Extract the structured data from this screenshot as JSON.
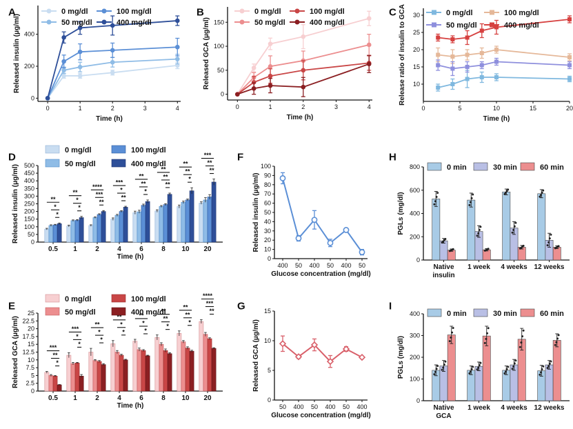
{
  "panel_letters": [
    "A",
    "B",
    "C",
    "D",
    "E",
    "F",
    "G",
    "H",
    "I"
  ],
  "colors": {
    "blue": [
      "#c9ddf1",
      "#8fbce6",
      "#5b8fd6",
      "#2e4f99"
    ],
    "red": [
      "#f7cfd1",
      "#ec8e8f",
      "#c94646",
      "#8b1f22"
    ],
    "e": [
      "#7fb8df",
      "#e5b899",
      "#8e8fdd",
      "#d6403f"
    ],
    "fg_line": [
      "#5b8fd6",
      "#d9606a"
    ],
    "h": [
      "#a8cbe6",
      "#b9bfe5",
      "#ec8e8f"
    ]
  },
  "chart_data": [
    {
      "id": "A",
      "type": "line",
      "xlabel": "Time (h)",
      "ylabel": "Released insulin (μg/ml)",
      "xlim": [
        -0.3,
        4.1
      ],
      "ylim": [
        -20,
        580
      ],
      "xticks": [
        0,
        1,
        2,
        3,
        4
      ],
      "yticks": [
        0,
        200,
        400
      ],
      "x": [
        0,
        0.5,
        1,
        2,
        4
      ],
      "series": [
        {
          "name": "0 mg/dl",
          "values": [
            0,
            140,
            140,
            160,
            205
          ],
          "err": [
            0,
            15,
            15,
            15,
            20
          ]
        },
        {
          "name": "50 mg/dl",
          "values": [
            0,
            175,
            195,
            225,
            245
          ],
          "err": [
            0,
            20,
            30,
            30,
            30
          ]
        },
        {
          "name": "100 mg/dl",
          "values": [
            0,
            230,
            290,
            300,
            320
          ],
          "err": [
            0,
            40,
            50,
            45,
            55
          ]
        },
        {
          "name": "400 mg/dl",
          "values": [
            0,
            380,
            440,
            455,
            485
          ],
          "err": [
            0,
            35,
            40,
            60,
            30
          ]
        }
      ]
    },
    {
      "id": "B",
      "type": "line",
      "xlabel": "Time (h)",
      "ylabel": "Released GCA (μg/ml)",
      "xlim": [
        -0.3,
        4.1
      ],
      "ylim": [
        -12,
        182
      ],
      "xticks": [
        0,
        1,
        2,
        3,
        4
      ],
      "yticks": [
        0,
        50,
        100,
        150
      ],
      "x": [
        0,
        0.5,
        1,
        2,
        4
      ],
      "series": [
        {
          "name": "0 mg/dl",
          "values": [
            0,
            55,
            105,
            120,
            158
          ],
          "err": [
            0,
            8,
            12,
            25,
            15
          ]
        },
        {
          "name": "50 mg/dl",
          "values": [
            0,
            35,
            58,
            70,
            103
          ],
          "err": [
            0,
            10,
            22,
            20,
            22
          ]
        },
        {
          "name": "100 mg/dl",
          "values": [
            0,
            25,
            38,
            50,
            65
          ],
          "err": [
            0,
            12,
            15,
            20,
            15
          ]
        },
        {
          "name": "400 mg/dl",
          "values": [
            0,
            12,
            18,
            15,
            63
          ],
          "err": [
            0,
            12,
            15,
            20,
            18
          ]
        }
      ]
    },
    {
      "id": "E",
      "type": "line",
      "xlabel": "Time (h)",
      "ylabel": "Release ratio of insulin to GCA",
      "xlim": [
        0,
        20
      ],
      "ylim": [
        5,
        32
      ],
      "xticks": [
        0,
        5,
        10,
        15,
        20
      ],
      "yticks": [
        10,
        15,
        20,
        25,
        30
      ],
      "x": [
        2,
        4,
        6,
        8,
        10,
        20
      ],
      "series": [
        {
          "name": "0 mg/dl",
          "values": [
            9,
            10,
            11.5,
            12,
            12,
            11.5
          ],
          "err": [
            1,
            1.5,
            2.5,
            1.5,
            1,
            0.8
          ]
        },
        {
          "name": "100 mg/dl",
          "values": [
            18.5,
            18,
            18.5,
            19,
            20,
            17.8
          ],
          "err": [
            2,
            2,
            1.5,
            1.5,
            1,
            1
          ]
        },
        {
          "name": "50 mg/dl",
          "values": [
            15.5,
            14.5,
            15,
            15.5,
            16.5,
            15.5
          ],
          "err": [
            1.5,
            2,
            1.5,
            1,
            1,
            1
          ]
        },
        {
          "name": "400 mg/dl",
          "values": [
            23.5,
            23,
            23.5,
            25.5,
            26.5,
            28.8
          ],
          "err": [
            1,
            1,
            2,
            2,
            2,
            1
          ]
        }
      ]
    },
    {
      "id": "C",
      "type": "bar",
      "xlabel": "Time (h)",
      "ylabel": "Released insulin (μg/ml)",
      "ylim": [
        0,
        500
      ],
      "yticks": [
        0,
        50,
        100,
        150,
        200,
        250,
        300,
        350,
        400,
        450,
        500
      ],
      "categories": [
        "0.5",
        "1",
        "2",
        "4",
        "6",
        "8",
        "10",
        "20"
      ],
      "series": [
        {
          "name": "0 mg/dl",
          "values": [
            85,
            105,
            108,
            150,
            192,
            203,
            232,
            255
          ],
          "err": [
            5,
            6,
            5,
            8,
            10,
            8,
            10,
            8
          ]
        },
        {
          "name": "50 mg/dl",
          "values": [
            108,
            140,
            160,
            175,
            198,
            233,
            260,
            275
          ],
          "err": [
            5,
            5,
            5,
            6,
            10,
            6,
            8,
            15
          ]
        },
        {
          "name": "100 mg/dl",
          "values": [
            112,
            142,
            180,
            200,
            240,
            245,
            275,
            295
          ],
          "err": [
            4,
            5,
            5,
            5,
            8,
            6,
            6,
            15
          ]
        },
        {
          "name": "400 mg/dl",
          "values": [
            120,
            160,
            200,
            228,
            265,
            312,
            335,
            392
          ],
          "err": [
            5,
            8,
            6,
            6,
            10,
            8,
            20,
            20
          ]
        }
      ],
      "sig_labels": [
        [
          "**",
          "*",
          "*"
        ],
        [
          "**",
          "*",
          "*"
        ],
        [
          "****",
          "***",
          "**"
        ],
        [
          "***",
          "*",
          "**"
        ],
        [
          "**",
          "**",
          "*"
        ],
        [
          "**",
          "**",
          "**"
        ],
        [
          "**",
          "**",
          "*"
        ],
        [
          "***",
          "**",
          "**"
        ]
      ]
    },
    {
      "id": "D",
      "type": "bar",
      "xlabel": "Time (h)",
      "ylabel": "Released GCA (μg/ml)",
      "ylim": [
        0,
        25
      ],
      "yticks": [
        0,
        2.5,
        5,
        7.5,
        10,
        12.5,
        15,
        17.5,
        20,
        22.5,
        25
      ],
      "categories": [
        "0.5",
        "1",
        "2",
        "4",
        "6",
        "8",
        "10",
        "20"
      ],
      "series": [
        {
          "name": "0 mg/dl",
          "values": [
            6,
            11.5,
            12.5,
            15.2,
            16,
            17.2,
            18.5,
            22.3
          ],
          "err": [
            0.3,
            0.8,
            1.2,
            1,
            0.6,
            0.8,
            0.8,
            0.6
          ]
        },
        {
          "name": "50 mg/dl",
          "values": [
            5,
            8.8,
            9.8,
            12.5,
            13.3,
            15,
            15.8,
            18.2
          ],
          "err": [
            0.3,
            0.4,
            0.3,
            0.5,
            0.5,
            0.5,
            0.4,
            0.6
          ]
        },
        {
          "name": "100 mg/dl",
          "values": [
            4.8,
            9,
            9.5,
            11.5,
            13,
            13,
            13.8,
            16.8
          ],
          "err": [
            0.2,
            0.2,
            0.3,
            0.3,
            0.3,
            0.5,
            0.4,
            0.3
          ]
        },
        {
          "name": "400 mg/dl",
          "values": [
            2,
            4.8,
            8.5,
            10,
            11.3,
            12,
            12.8,
            13.7
          ],
          "err": [
            0.1,
            0.5,
            0.3,
            0.2,
            0.2,
            0.3,
            0.3,
            0.2
          ]
        }
      ],
      "sig_labels": [
        [
          "***",
          "**",
          "*"
        ],
        [
          "***",
          "*",
          "*"
        ],
        [
          "**",
          "*",
          "*"
        ],
        [
          "**",
          "*",
          "*"
        ],
        [
          "**",
          "*",
          "*"
        ],
        [
          "**",
          "**",
          "*"
        ],
        [
          "**",
          "**",
          "*"
        ],
        [
          "****",
          "***",
          "**"
        ]
      ]
    },
    {
      "id": "F",
      "type": "line",
      "xlabel": "Glucose concentration (mg/dl)",
      "ylabel": "Released insulin (μg/ml)",
      "ylim": [
        0,
        100
      ],
      "yticks": [
        0,
        10,
        20,
        30,
        40,
        50,
        60,
        70,
        80,
        90,
        100
      ],
      "categories": [
        "400",
        "50",
        "400",
        "50",
        "400",
        "50"
      ],
      "values": [
        87,
        22,
        42,
        17,
        31,
        7
      ],
      "err": [
        6,
        3,
        10,
        4,
        2,
        3
      ]
    },
    {
      "id": "G",
      "type": "line",
      "xlabel": "Glucose concentration (mg/dl)",
      "ylabel": "Released GCA (μg/ml)",
      "ylim": [
        0,
        15
      ],
      "yticks": [
        0,
        5,
        10,
        15
      ],
      "categories": [
        "50",
        "400",
        "50",
        "400",
        "50",
        "400"
      ],
      "values": [
        9.5,
        7.3,
        9.3,
        6.5,
        8.6,
        7.2
      ],
      "err": [
        1.3,
        0.3,
        1,
        1,
        0.4,
        0.2
      ]
    },
    {
      "id": "H",
      "type": "bar",
      "ylabel": "PGLs (mg/dl)",
      "ylim": [
        0,
        800
      ],
      "yticks": [
        0,
        200,
        400,
        600,
        800
      ],
      "categories": [
        "Native\ninsulin",
        "1 week",
        "4 weeks",
        "12 weeks"
      ],
      "series": [
        {
          "name": "0 min",
          "values": [
            525,
            515,
            585,
            570
          ],
          "err": [
            65,
            60,
            25,
            35
          ]
        },
        {
          "name": "30 min",
          "values": [
            165,
            245,
            275,
            170
          ],
          "err": [
            20,
            50,
            55,
            60
          ]
        },
        {
          "name": "60 min",
          "values": [
            85,
            88,
            110,
            110
          ],
          "err": [
            10,
            10,
            15,
            12
          ]
        }
      ]
    },
    {
      "id": "I",
      "type": "bar",
      "ylabel": "PGLs (mg/dl)",
      "ylim": [
        0,
        400
      ],
      "yticks": [
        0,
        100,
        200,
        300,
        400
      ],
      "categories": [
        "Native\nGCA",
        "1 week",
        "4 weeks",
        "12 weeks"
      ],
      "series": [
        {
          "name": "0 min",
          "values": [
            140,
            140,
            140,
            138
          ],
          "err": [
            25,
            20,
            20,
            25
          ]
        },
        {
          "name": "30 min",
          "values": [
            160,
            158,
            165,
            165
          ],
          "err": [
            25,
            20,
            25,
            20
          ]
        },
        {
          "name": "60 min",
          "values": [
            303,
            298,
            283,
            278
          ],
          "err": [
            40,
            45,
            50,
            30
          ]
        }
      ]
    }
  ]
}
